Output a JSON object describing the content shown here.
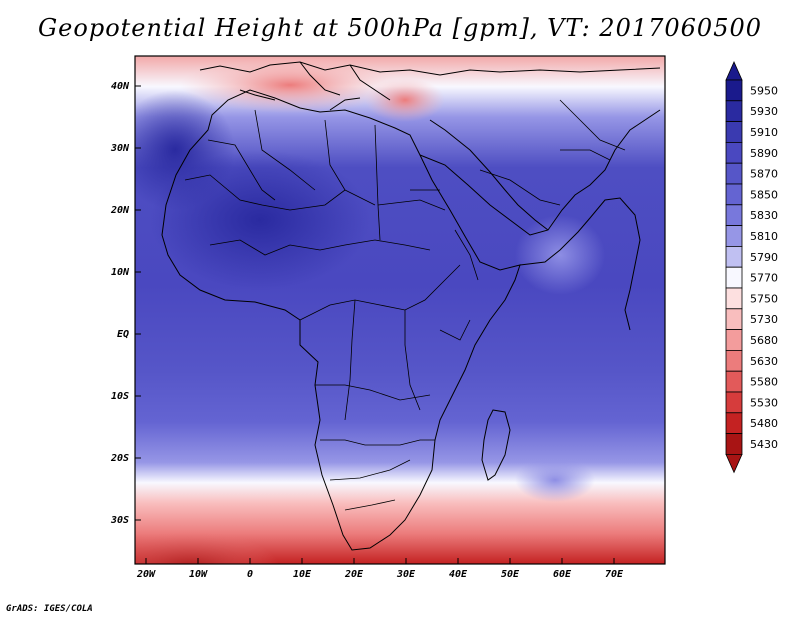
{
  "title": "Geopotential Height at 500hPa [gpm], VT: 2017060500",
  "credit": "GrADS: IGES/COLA",
  "lat_labels": [
    "40N",
    "30N",
    "20N",
    "10N",
    "EQ",
    "10S",
    "20S",
    "30S"
  ],
  "lon_labels": [
    "20W",
    "10W",
    "0",
    "10E",
    "20E",
    "30E",
    "40E",
    "50E",
    "60E",
    "70E"
  ],
  "colorbar": {
    "levels": [
      "5950",
      "5930",
      "5910",
      "5890",
      "5870",
      "5850",
      "5830",
      "5810",
      "5790",
      "5770",
      "5750",
      "5730",
      "5680",
      "5630",
      "5580",
      "5530",
      "5480",
      "5430"
    ],
    "colors": [
      "#1a1a8c",
      "#2a2aa0",
      "#3a3ab0",
      "#4a48c0",
      "#5656c8",
      "#6464d2",
      "#7878dc",
      "#9696e6",
      "#c0c0f2",
      "#f8f8ff",
      "#fde0e0",
      "#f9bebe",
      "#f39c9c",
      "#ec7c7c",
      "#e25a5a",
      "#d63c3c",
      "#c42222",
      "#a81414"
    ]
  }
}
